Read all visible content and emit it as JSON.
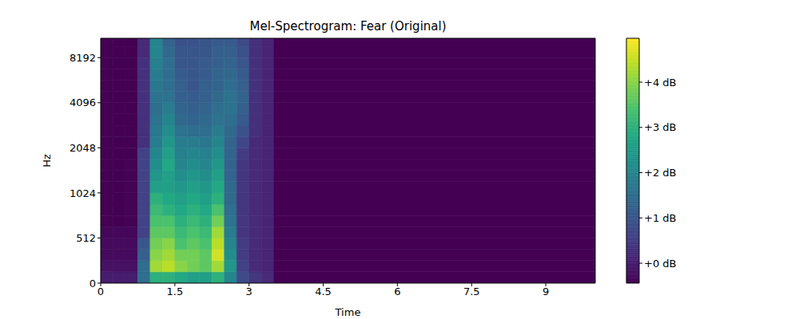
{
  "chart_data": {
    "type": "heatmap",
    "title": "Mel-Spectrogram: Fear (Original)",
    "x_label": "Time",
    "y_label": "Hz",
    "xlim": [
      0,
      10
    ],
    "xticks": [
      0,
      1.5,
      3,
      4.5,
      6,
      7.5,
      9
    ],
    "ylim": [
      0,
      11025
    ],
    "yticks": [
      0,
      512,
      1024,
      2048,
      4096,
      8192
    ],
    "x_bins": [
      0,
      0.25,
      0.5,
      0.75,
      1.0,
      1.25,
      1.5,
      1.75,
      2.0,
      2.25,
      2.5,
      2.75,
      3.0,
      3.25,
      3.5,
      10
    ],
    "y_bins": [
      0,
      128,
      256,
      384,
      512,
      609,
      724,
      861,
      1024,
      1218,
      1448,
      1722,
      2048,
      2435,
      2896,
      3444,
      4096,
      4871,
      5793,
      6889,
      8192,
      9742,
      11025
    ],
    "values": [
      [
        0.0,
        0.0,
        0.0,
        1.5,
        3.0,
        3.0,
        2.8,
        2.6,
        2.6,
        3.0,
        2.0,
        0.8,
        0.4,
        0.2,
        -0.44
      ],
      [
        -0.2,
        -0.2,
        -0.2,
        1.5,
        4.2,
        4.4,
        4.0,
        3.8,
        3.6,
        4.2,
        2.4,
        0.6,
        0.2,
        0.1,
        -0.44
      ],
      [
        -0.3,
        -0.3,
        -0.3,
        1.2,
        4.0,
        4.2,
        3.8,
        3.8,
        3.6,
        4.6,
        2.2,
        0.5,
        0.2,
        0.1,
        -0.44
      ],
      [
        -0.3,
        -0.3,
        -0.3,
        1.0,
        3.8,
        4.0,
        3.4,
        3.6,
        3.4,
        4.4,
        2.0,
        0.5,
        0.2,
        0.1,
        -0.44
      ],
      [
        -0.35,
        -0.35,
        -0.35,
        0.6,
        3.6,
        3.6,
        3.2,
        3.4,
        3.2,
        4.2,
        1.8,
        0.4,
        0.2,
        0.1,
        -0.44
      ],
      [
        -0.44,
        -0.44,
        -0.4,
        0.6,
        3.4,
        3.4,
        3.0,
        3.2,
        3.0,
        3.8,
        1.6,
        0.4,
        0.2,
        0.1,
        -0.44
      ],
      [
        -0.44,
        -0.44,
        -0.4,
        0.6,
        3.2,
        3.0,
        2.8,
        3.0,
        2.8,
        3.4,
        1.5,
        0.4,
        0.2,
        0.1,
        -0.44
      ],
      [
        -0.44,
        -0.44,
        -0.4,
        0.6,
        3.0,
        2.8,
        2.6,
        2.8,
        2.6,
        3.0,
        1.4,
        0.4,
        0.2,
        0.1,
        -0.44
      ],
      [
        -0.44,
        -0.44,
        -0.4,
        0.6,
        2.6,
        2.6,
        2.4,
        2.6,
        2.4,
        2.8,
        1.4,
        0.4,
        0.2,
        0.1,
        -0.44
      ],
      [
        -0.44,
        -0.44,
        -0.4,
        0.6,
        2.4,
        2.6,
        2.2,
        2.4,
        2.2,
        2.6,
        1.3,
        0.4,
        0.2,
        0.1,
        -0.44
      ],
      [
        -0.44,
        -0.44,
        -0.4,
        0.6,
        2.2,
        2.8,
        2.0,
        2.2,
        2.0,
        2.4,
        1.3,
        0.4,
        0.2,
        0.1,
        -0.44
      ],
      [
        -0.44,
        -0.44,
        -0.44,
        0.6,
        2.0,
        2.6,
        1.9,
        2.0,
        1.9,
        2.2,
        1.3,
        0.5,
        0.2,
        0.1,
        -0.44
      ],
      [
        -0.44,
        -0.44,
        -0.44,
        0.3,
        1.8,
        2.4,
        1.8,
        1.8,
        1.7,
        2.0,
        1.3,
        0.7,
        0.2,
        0.1,
        -0.44
      ],
      [
        -0.44,
        -0.44,
        -0.44,
        0.3,
        1.7,
        2.2,
        1.6,
        1.5,
        1.5,
        1.8,
        1.4,
        0.9,
        0.3,
        0.1,
        -0.44
      ],
      [
        -0.44,
        -0.44,
        -0.44,
        0.3,
        1.6,
        2.0,
        1.4,
        1.3,
        1.4,
        1.6,
        1.5,
        1.1,
        0.3,
        0.1,
        -0.44
      ],
      [
        -0.44,
        -0.44,
        -0.44,
        0.3,
        1.5,
        1.8,
        1.3,
        1.2,
        1.3,
        1.5,
        1.6,
        1.2,
        0.3,
        0.1,
        -0.44
      ],
      [
        -0.44,
        -0.44,
        -0.44,
        0.3,
        1.6,
        1.6,
        1.2,
        1.1,
        1.2,
        1.4,
        1.6,
        1.3,
        0.3,
        0.1,
        -0.44
      ],
      [
        -0.44,
        -0.44,
        -0.44,
        0.3,
        1.7,
        1.5,
        1.2,
        1.0,
        1.2,
        1.3,
        1.5,
        1.2,
        0.3,
        0.1,
        -0.44
      ],
      [
        -0.44,
        -0.44,
        -0.44,
        0.3,
        1.8,
        1.5,
        1.1,
        1.0,
        1.1,
        1.3,
        1.4,
        1.1,
        0.3,
        0.1,
        -0.44
      ],
      [
        -0.44,
        -0.44,
        -0.44,
        0.3,
        1.9,
        1.5,
        1.0,
        1.0,
        1.1,
        1.2,
        1.3,
        1.0,
        0.3,
        0.1,
        -0.44
      ],
      [
        -0.44,
        -0.44,
        -0.44,
        0.2,
        2.0,
        1.4,
        1.0,
        1.0,
        1.0,
        1.2,
        1.2,
        0.9,
        0.3,
        0.1,
        -0.44
      ],
      [
        -0.44,
        -0.44,
        -0.44,
        0.2,
        2.0,
        1.3,
        0.9,
        0.9,
        1.0,
        1.1,
        1.1,
        0.8,
        0.3,
        0.1,
        -0.44
      ]
    ],
    "colorbar": {
      "range": [
        -0.44,
        4.97
      ],
      "ticks": [
        {
          "value": 0,
          "label": "+0 dB"
        },
        {
          "value": 1,
          "label": "+1 dB"
        },
        {
          "value": 2,
          "label": "+2 dB"
        },
        {
          "value": 3,
          "label": "+3 dB"
        },
        {
          "value": 4,
          "label": "+4 dB"
        }
      ]
    }
  }
}
